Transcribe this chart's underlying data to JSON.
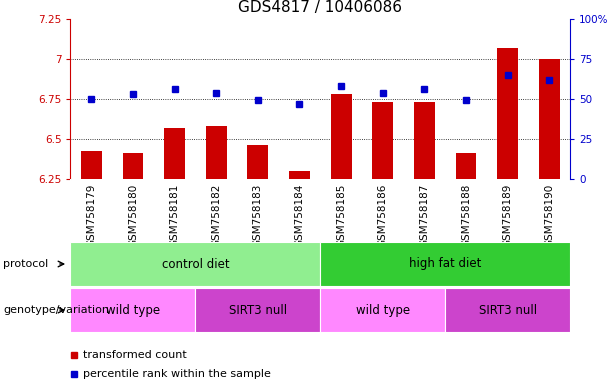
{
  "title": "GDS4817 / 10406086",
  "samples": [
    "GSM758179",
    "GSM758180",
    "GSM758181",
    "GSM758182",
    "GSM758183",
    "GSM758184",
    "GSM758185",
    "GSM758186",
    "GSM758187",
    "GSM758188",
    "GSM758189",
    "GSM758190"
  ],
  "red_values": [
    6.42,
    6.41,
    6.57,
    6.58,
    6.46,
    6.3,
    6.78,
    6.73,
    6.73,
    6.41,
    7.07,
    7.0
  ],
  "blue_values": [
    50,
    53,
    56,
    54,
    49,
    47,
    58,
    54,
    56,
    49,
    65,
    62
  ],
  "ylim_left": [
    6.25,
    7.25
  ],
  "ylim_right": [
    0,
    100
  ],
  "yticks_left": [
    6.25,
    6.5,
    6.75,
    7.0,
    7.25
  ],
  "yticks_right": [
    0,
    25,
    50,
    75,
    100
  ],
  "ytick_labels_left": [
    "6.25",
    "6.5",
    "6.75",
    "7",
    "7.25"
  ],
  "ytick_labels_right": [
    "0",
    "25",
    "50",
    "75",
    "100%"
  ],
  "grid_lines": [
    6.5,
    6.75,
    7.0
  ],
  "protocol_groups": [
    {
      "label": "control diet",
      "start": 0,
      "end": 5,
      "color": "#90EE90"
    },
    {
      "label": "high fat diet",
      "start": 6,
      "end": 11,
      "color": "#33CC33"
    }
  ],
  "genotype_groups": [
    {
      "label": "wild type",
      "start": 0,
      "end": 2,
      "color": "#FF88FF"
    },
    {
      "label": "SIRT3 null",
      "start": 3,
      "end": 5,
      "color": "#CC44CC"
    },
    {
      "label": "wild type",
      "start": 6,
      "end": 8,
      "color": "#FF88FF"
    },
    {
      "label": "SIRT3 null",
      "start": 9,
      "end": 11,
      "color": "#CC44CC"
    }
  ],
  "red_color": "#CC0000",
  "blue_color": "#0000CC",
  "bar_width": 0.5,
  "protocol_label": "protocol",
  "genotype_label": "genotype/variation",
  "legend_red": "transformed count",
  "legend_blue": "percentile rank within the sample",
  "title_fontsize": 11,
  "tick_fontsize": 7.5,
  "label_fontsize": 8,
  "ticklabel_gray": "#C8C8C8"
}
